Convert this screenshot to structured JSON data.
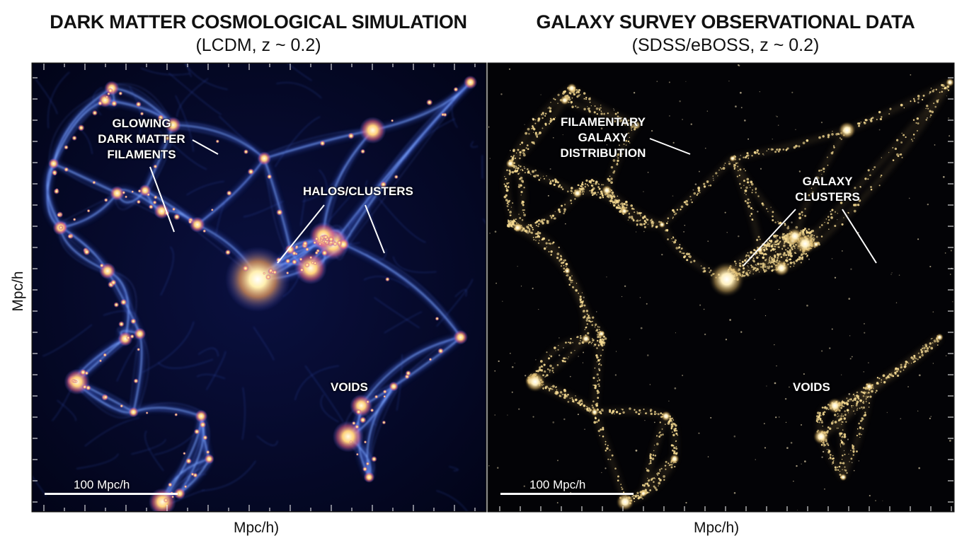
{
  "left_panel": {
    "title": "DARK MATTER COSMOLOGICAL SIMULATION",
    "subtitle": "(LCDM, z ~ 0.2)",
    "annotations": {
      "filaments": [
        "GLOWING",
        "DARK MATTER",
        "FILAMENTS"
      ],
      "halos": "HALOS/CLUSTERS",
      "voids": "VOIDS"
    },
    "scale_bar": "100 Mpc/h",
    "x_axis_label": "Mpc/h)",
    "palette": {
      "web": "#3c5fd8",
      "glow": "#7fa8ff",
      "knot": "#ffd27a",
      "core": "#fff6d0"
    }
  },
  "right_panel": {
    "title": "GALAXY SURVEY OBSERVATIONAL DATA",
    "subtitle": "(SDSS/eBOSS, z ~ 0.2)",
    "annotations": {
      "filaments": [
        "FILAMENTARY",
        "GALAXY",
        "DISTRIBUTION"
      ],
      "clusters": [
        "GALAXY",
        "CLUSTERS"
      ],
      "voids": "VOIDS"
    },
    "scale_bar": "100 Mpc/h",
    "x_axis_label": "Mpc/h)",
    "palette": {
      "galaxy": "#f3d890",
      "core": "#fff4d6"
    }
  },
  "y_axis_label": "Mpc/h"
}
